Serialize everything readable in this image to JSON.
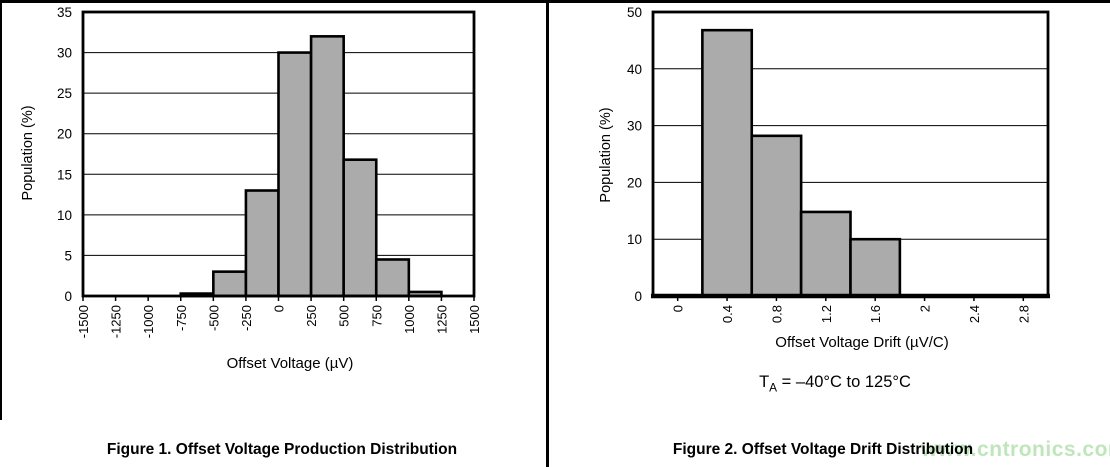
{
  "figure1": {
    "caption": "Figure 1. Offset Voltage Production Distribution"
  },
  "figure2": {
    "caption": "Figure 2. Offset Voltage Drift Distribution",
    "annotation": {
      "base": "T",
      "sub": "A",
      "rest": " = –40°C to 125°C"
    }
  },
  "watermark": {
    "text": "www.cntronics.com",
    "color": "#b5e2b0"
  },
  "chart_data": [
    {
      "type": "bar",
      "title": "Figure 1. Offset Voltage Production Distribution",
      "xlabel": "Offset Voltage (µV)",
      "ylabel": "Population (%)",
      "ylim": [
        0,
        35
      ],
      "ytick_step": 5,
      "y_tick_labels": [
        "0",
        "5",
        "10",
        "15",
        "20",
        "25",
        "30",
        "35"
      ],
      "xlim": [
        -1500,
        1500
      ],
      "x_ticks": [
        -1500,
        -1250,
        -1000,
        -750,
        -500,
        -250,
        0,
        250,
        500,
        750,
        1000,
        1250,
        1500
      ],
      "x_tick_labels": [
        "-1500",
        "-1250",
        "-1000",
        "-750",
        "-500",
        "-250",
        "0",
        "250",
        "500",
        "750",
        "1000",
        "1250",
        "1500"
      ],
      "bin_edges": [
        -1500,
        -1250,
        -1000,
        -750,
        -500,
        -250,
        0,
        250,
        500,
        750,
        1000,
        1250,
        1500
      ],
      "values": [
        0,
        0,
        0,
        0.3,
        3,
        13,
        30,
        32,
        16.8,
        4.5,
        0.5,
        0
      ],
      "grid": true,
      "legend": "none",
      "bar_fill": "#ABABAB",
      "bar_stroke": "#000000"
    },
    {
      "type": "bar",
      "title": "Figure 2. Offset Voltage Drift Distribution",
      "xlabel": "Offset Voltage Drift (µV/C)",
      "ylabel": "Population (%)",
      "ylim": [
        0,
        50
      ],
      "ytick_step": 10,
      "y_tick_labels": [
        "0",
        "10",
        "20",
        "30",
        "40",
        "50"
      ],
      "xlim": [
        -0.2,
        3.0
      ],
      "x_ticks": [
        0,
        0.4,
        0.8,
        1.2,
        1.6,
        2,
        2.4,
        2.8
      ],
      "x_tick_labels": [
        "0",
        "0.4",
        "0.8",
        "1.2",
        "1.6",
        "2",
        "2.4",
        "2.8"
      ],
      "bar_centers": [
        0.4,
        0.8,
        1.2,
        1.6
      ],
      "bar_width": 0.4,
      "values": [
        46.8,
        28.2,
        14.8,
        10
      ],
      "annotation": "TA = –40°C to 125°C",
      "grid": true,
      "legend": "none",
      "bar_fill": "#ABABAB",
      "bar_stroke": "#000000"
    }
  ]
}
